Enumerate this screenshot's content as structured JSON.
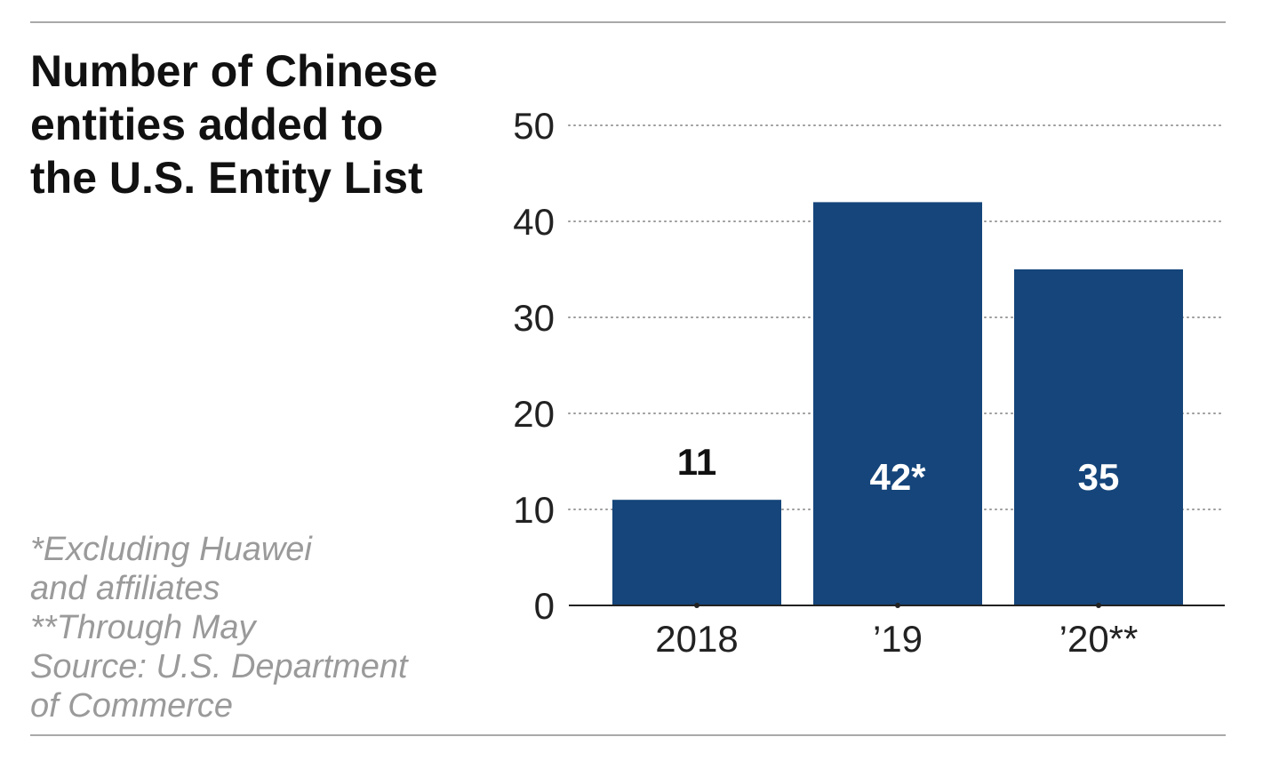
{
  "title": "Number of Chinese\nentities added to\nthe U.S. Entity List",
  "notes": [
    "*Excluding Huawei",
    "and affiliates",
    "**Through May",
    "Source: U.S. Department",
    "of Commerce"
  ],
  "colors": {
    "bar": "#15457a",
    "rule": "#a9a9a9",
    "grid": "#9a9a9a",
    "axis": "#222222",
    "label_outside": "#111111",
    "label_inside": "#ffffff"
  },
  "chart_data": {
    "type": "bar",
    "title": "Number of Chinese entities added to the U.S. Entity List",
    "categories": [
      "2018",
      "’19",
      "’20**"
    ],
    "values": [
      11,
      42,
      35
    ],
    "data_labels": [
      "11",
      "42*",
      "35"
    ],
    "label_inside": [
      false,
      true,
      true
    ],
    "yticks": [
      0,
      10,
      20,
      30,
      40,
      50
    ],
    "ylim": [
      0,
      50
    ],
    "xlabel": "",
    "ylabel": "",
    "grid": "dotted horizontal"
  }
}
